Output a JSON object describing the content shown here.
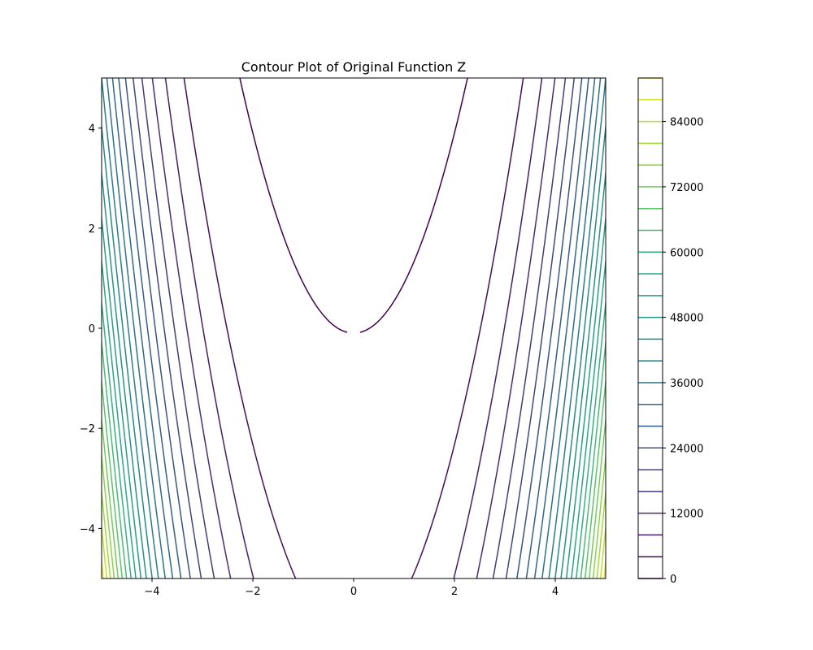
{
  "chart_data": {
    "type": "contour",
    "title": "Contour Plot of Original Function Z",
    "xlabel": "",
    "ylabel": "",
    "xlim": [
      -5,
      5
    ],
    "ylim": [
      -5,
      5
    ],
    "x_ticks": [
      -4,
      -2,
      0,
      2,
      4
    ],
    "y_ticks": [
      -4,
      -2,
      0,
      2,
      4
    ],
    "colormap": "viridis",
    "levels": [
      0,
      4000,
      8000,
      12000,
      16000,
      20000,
      24000,
      28000,
      32000,
      36000,
      40000,
      44000,
      48000,
      52000,
      56000,
      60000,
      64000,
      68000,
      72000,
      76000,
      80000,
      84000,
      88000,
      92000
    ],
    "colorbar": {
      "ticks": [
        0,
        12000,
        24000,
        36000,
        48000,
        60000,
        72000,
        84000
      ],
      "range": [
        0,
        92000
      ]
    },
    "grid": false,
    "legend": "none",
    "function_hint": "Rosenbrock-like valley along y = x^2"
  }
}
